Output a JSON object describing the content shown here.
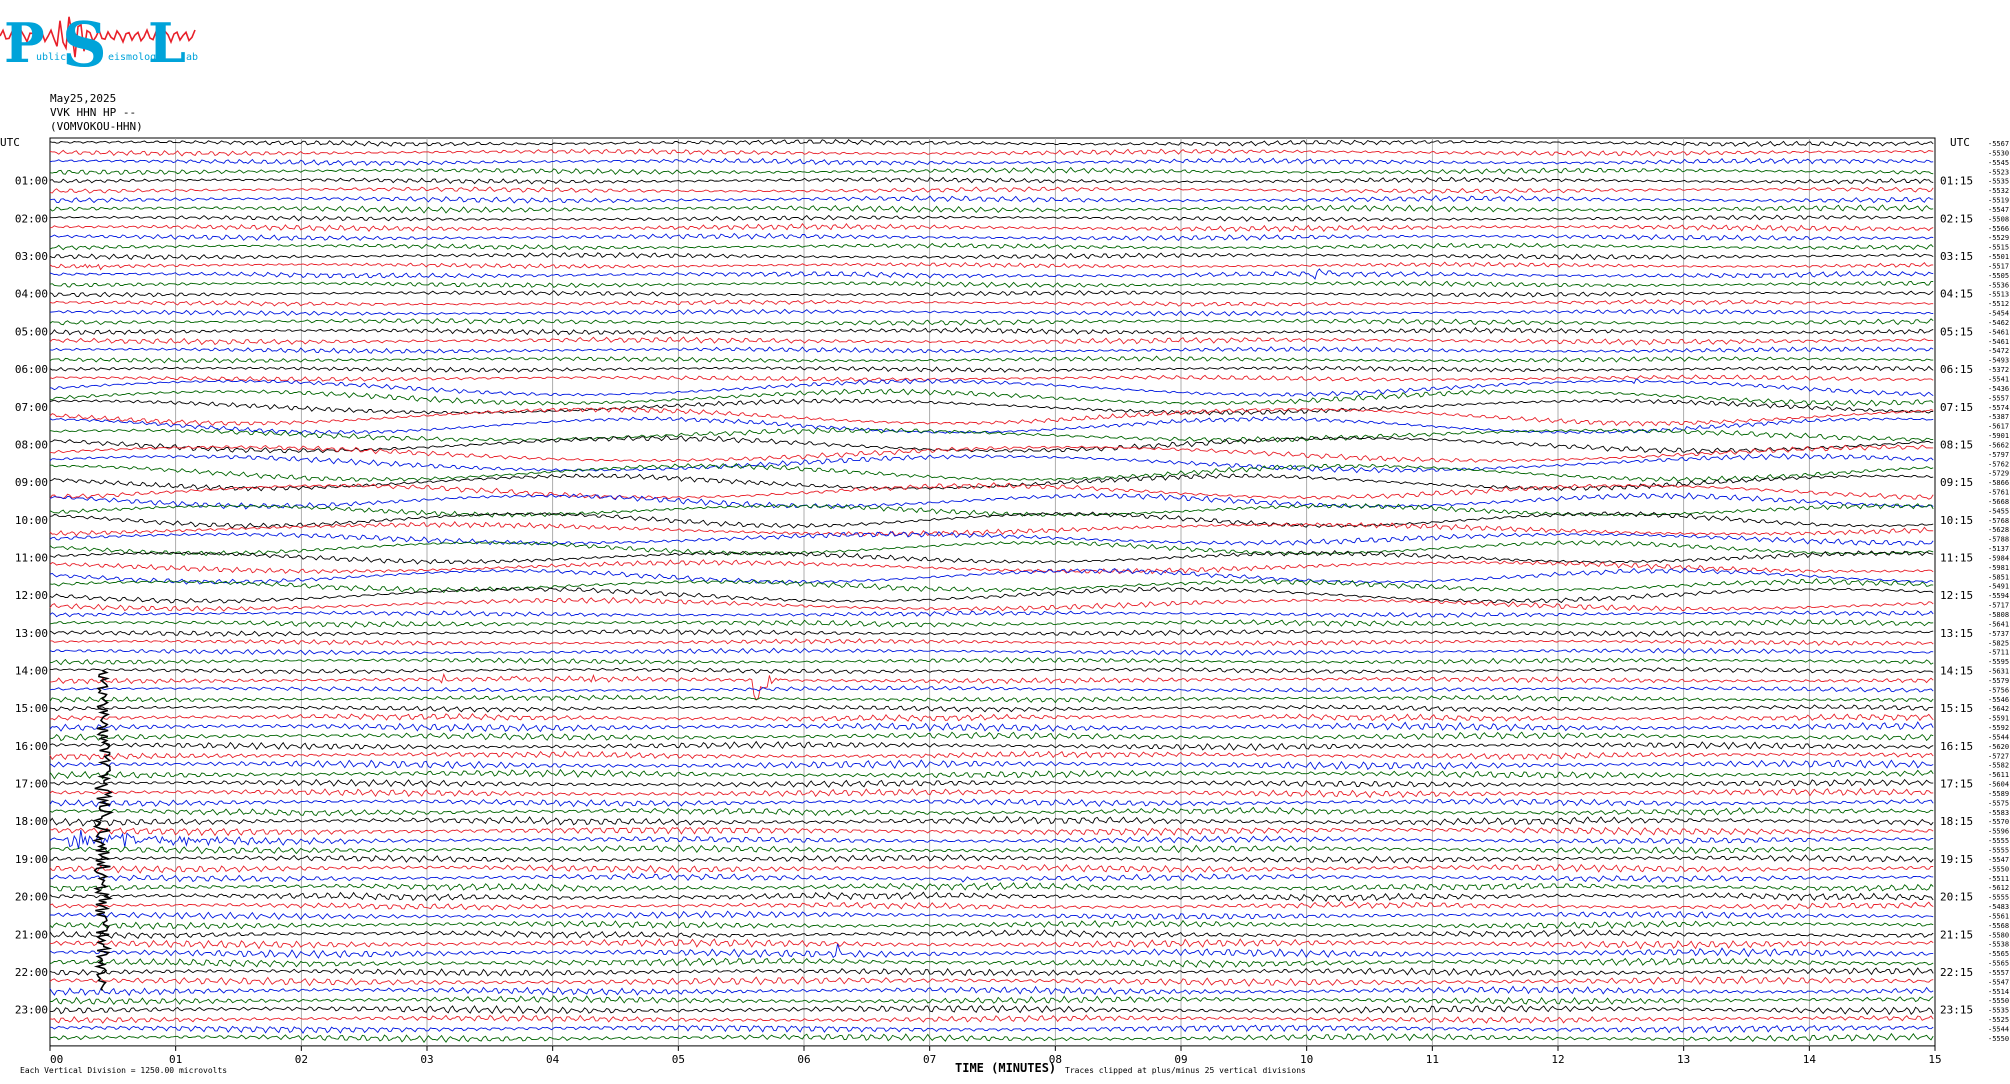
{
  "logo": {
    "letters": [
      "P",
      "S",
      "L"
    ],
    "tagline_parts": [
      "ublic",
      "eismology",
      "ab"
    ],
    "colors": {
      "letters": "#00a3d9",
      "trace": "#e8202a"
    }
  },
  "header": {
    "date": "May25,2025",
    "station": "VVK HHN HP --",
    "station_full": "(VOMVOKOU-HHN)"
  },
  "chart_data": {
    "type": "helicorder",
    "rows": 96,
    "minutes_per_row": 15,
    "colors": [
      "#000000",
      "#e8202a",
      "#0018e0",
      "#006400"
    ],
    "left_axis_label": "UTC",
    "right_axis_label": "UTC",
    "left_hour_labels": [
      "01:00",
      "02:00",
      "03:00",
      "04:00",
      "05:00",
      "06:00",
      "07:00",
      "08:00",
      "09:00",
      "10:00",
      "11:00",
      "12:00",
      "13:00",
      "14:00",
      "15:00",
      "16:00",
      "17:00",
      "18:00",
      "19:00",
      "20:00",
      "21:00",
      "22:00",
      "23:00"
    ],
    "right_hour_labels": [
      "01:15",
      "02:15",
      "03:15",
      "04:15",
      "05:15",
      "06:15",
      "07:15",
      "08:15",
      "09:15",
      "10:15",
      "11:15",
      "12:15",
      "13:15",
      "14:15",
      "15:15",
      "16:15",
      "17:15",
      "18:15",
      "19:15",
      "20:15",
      "21:15",
      "22:15",
      "23:15"
    ],
    "x_ticks": [
      "00",
      "01",
      "02",
      "03",
      "04",
      "05",
      "06",
      "07",
      "08",
      "09",
      "10",
      "11",
      "12",
      "13",
      "14",
      "15"
    ],
    "xlabel": "TIME (MINUTES)",
    "row_means": [
      -5567,
      -5530,
      -5545,
      -5523,
      -5535,
      -5532,
      -5519,
      -5547,
      -5508,
      -5566,
      -5529,
      -5515,
      -5501,
      -5517,
      -5505,
      -5536,
      -5513,
      -5512,
      -5454,
      -5462,
      -5461,
      -5461,
      -5472,
      -5493,
      -5372,
      -5541,
      -5436,
      -5557,
      -5574,
      -5387,
      -5617,
      -5901,
      -5662,
      -5797,
      -5762,
      -5729,
      -5866,
      -5761,
      -5668,
      -5455,
      -5768,
      -5628,
      -5788,
      -5137,
      -5984,
      -5981,
      -5851,
      -5491,
      -5594,
      -5717,
      -5808,
      -5641,
      -5737,
      -5825,
      -5711,
      -5595,
      -5631,
      -5579,
      -5756,
      -5546,
      -5642,
      -5591,
      -5592,
      -5544,
      -5620,
      -5727,
      -5582,
      -5611,
      -5604,
      -5589,
      -5575,
      -5583,
      -5570,
      -5596,
      -5555,
      -5555,
      -5547,
      -5550,
      -5511,
      -5612,
      -5555,
      -5483,
      -5561,
      -5568,
      -5580,
      -5538,
      -5565,
      -5565,
      -5557,
      -5547,
      -5514,
      -5550,
      -5535,
      -5525,
      -5544,
      -5550
    ],
    "footer_left": "Each Vertical Division = 1250.00 microvolts",
    "footer_right": "Traces clipped at plus/minus 25 vertical divisions",
    "events": [
      {
        "row": 0,
        "minute": 3.4,
        "amplitude": 4,
        "duration_min": 0.05
      },
      {
        "row": 13,
        "minute": 0.25,
        "amplitude": 9,
        "duration_min": 0.3
      },
      {
        "row": 14,
        "minute": 10.05,
        "amplitude": 12,
        "duration_min": 0.25
      },
      {
        "row": 26,
        "minute": 6.5,
        "amplitude": 4,
        "duration_min": 0.05
      },
      {
        "row": 26,
        "minute": 9.15,
        "amplitude": 4,
        "duration_min": 0.1
      },
      {
        "row": 26,
        "minute": 12.6,
        "amplitude": 4,
        "duration_min": 0.1
      },
      {
        "row": 33,
        "minute": 10.5,
        "amplitude": 5,
        "duration_min": 0.2
      },
      {
        "row": 57,
        "minute": 3.1,
        "amplitude": 8,
        "duration_min": 0.15
      },
      {
        "row": 57,
        "minute": 3.7,
        "amplitude": 7,
        "duration_min": 0.15
      },
      {
        "row": 57,
        "minute": 4.3,
        "amplitude": 6,
        "duration_min": 0.15
      },
      {
        "row": 57,
        "minute": 5.6,
        "amplitude": 26,
        "duration_min": 0.25
      },
      {
        "row": 74,
        "minute": 0.15,
        "amplitude": 12,
        "duration_min": 2.2
      },
      {
        "row": 78,
        "minute": 7.25,
        "amplitude": 8,
        "duration_min": 0.1
      },
      {
        "row": 86,
        "minute": 6.25,
        "amplitude": 12,
        "duration_min": 0.1
      }
    ],
    "big_spike": {
      "minute": 0.42,
      "from_row": 56,
      "to_row": 90
    }
  }
}
